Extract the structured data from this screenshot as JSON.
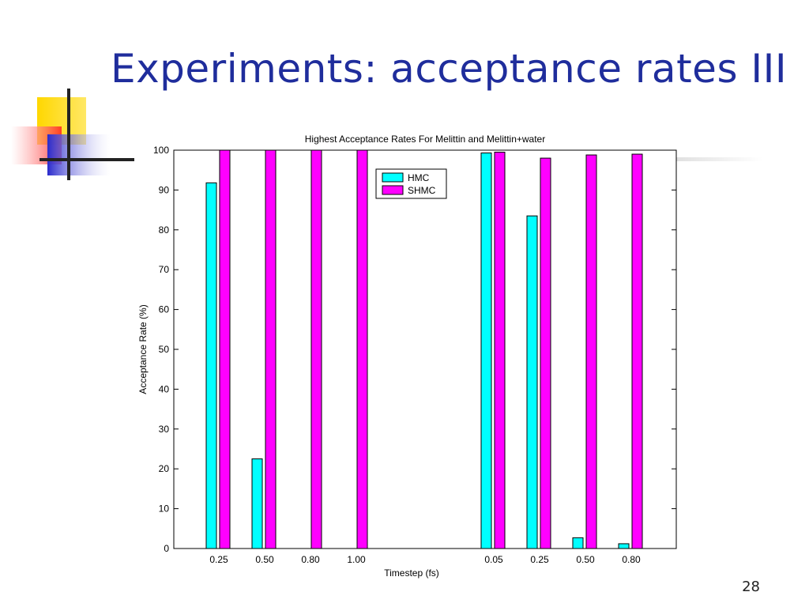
{
  "slide": {
    "title": "Experiments: acceptance rates III",
    "page_number": "28"
  },
  "colors": {
    "title": "#1f2d9c",
    "hmc": "#00ffff",
    "shmc": "#ff00ff",
    "deco_yellow": "#ffd700",
    "deco_red": "#ff3030",
    "deco_blue": "#2a2acc"
  },
  "chart_data": {
    "type": "bar",
    "title": "Highest Acceptance Rates For Melittin and Melittin+water",
    "xlabel": "Timestep (fs)",
    "ylabel": "Acceptance Rate (%)",
    "categories": [
      "0.25",
      "0.50",
      "0.80",
      "1.00",
      "",
      "0.05",
      "0.25",
      "0.50",
      "0.80"
    ],
    "series": [
      {
        "name": "HMC",
        "values": [
          91.8,
          22.5,
          0,
          0,
          null,
          99.3,
          83.5,
          2.7,
          1.2
        ]
      },
      {
        "name": "SHMC",
        "values": [
          100,
          100,
          100,
          100,
          null,
          99.5,
          98.0,
          98.8,
          99.0
        ]
      }
    ],
    "ylim": [
      0,
      100
    ],
    "yticks": [
      0,
      10,
      20,
      30,
      40,
      50,
      60,
      70,
      80,
      90,
      100
    ],
    "grid": false,
    "legend": "top-center"
  }
}
